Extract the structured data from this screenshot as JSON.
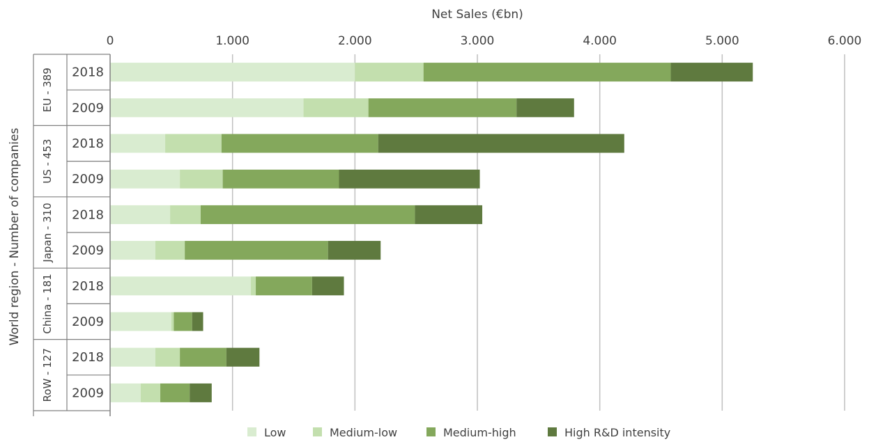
{
  "chart_data": {
    "type": "bar",
    "orientation": "horizontal",
    "stacked": true,
    "xlabel": "Net Sales (€bn)",
    "ylabel": "World region - Number of companies",
    "xlim": [
      0,
      6000
    ],
    "xticks": [
      "0",
      "1.000",
      "2.000",
      "3.000",
      "4.000",
      "5.000",
      "6.000"
    ],
    "tick_values": [
      0,
      1000,
      2000,
      3000,
      4000,
      5000,
      6000
    ],
    "grid": true,
    "legend_position": "bottom",
    "groups": [
      {
        "label": "EU - 389",
        "rows": [
          "2018",
          "2009"
        ]
      },
      {
        "label": "US - 453",
        "rows": [
          "2018",
          "2009"
        ]
      },
      {
        "label": "Japan - 310",
        "rows": [
          "2018",
          "2009"
        ]
      },
      {
        "label": "China - 181",
        "rows": [
          "2018",
          "2009"
        ]
      },
      {
        "label": "RoW - 127",
        "rows": [
          "2018",
          "2009"
        ]
      }
    ],
    "categories": [
      "EU - 389 2018",
      "EU - 389 2009",
      "US - 453 2018",
      "US - 453 2009",
      "Japan - 310 2018",
      "Japan - 310 2009",
      "China - 181 2018",
      "China - 181 2009",
      "RoW - 127 2018",
      "RoW - 127 2009"
    ],
    "series": [
      {
        "name": "Low",
        "color": "#d9ecd0",
        "values": [
          2000,
          1580,
          450,
          570,
          490,
          370,
          1150,
          500,
          370,
          250
        ]
      },
      {
        "name": "Medium-low",
        "color": "#c3dfae",
        "values": [
          560,
          530,
          460,
          350,
          250,
          240,
          40,
          20,
          200,
          160
        ]
      },
      {
        "name": "Medium-high",
        "color": "#84a85c",
        "values": [
          2020,
          1210,
          1280,
          950,
          1750,
          1170,
          460,
          150,
          380,
          240
        ]
      },
      {
        "name": "High R&D intensity",
        "color": "#5f7a3f",
        "values": [
          670,
          470,
          2010,
          1150,
          550,
          430,
          260,
          90,
          270,
          180
        ]
      }
    ]
  }
}
